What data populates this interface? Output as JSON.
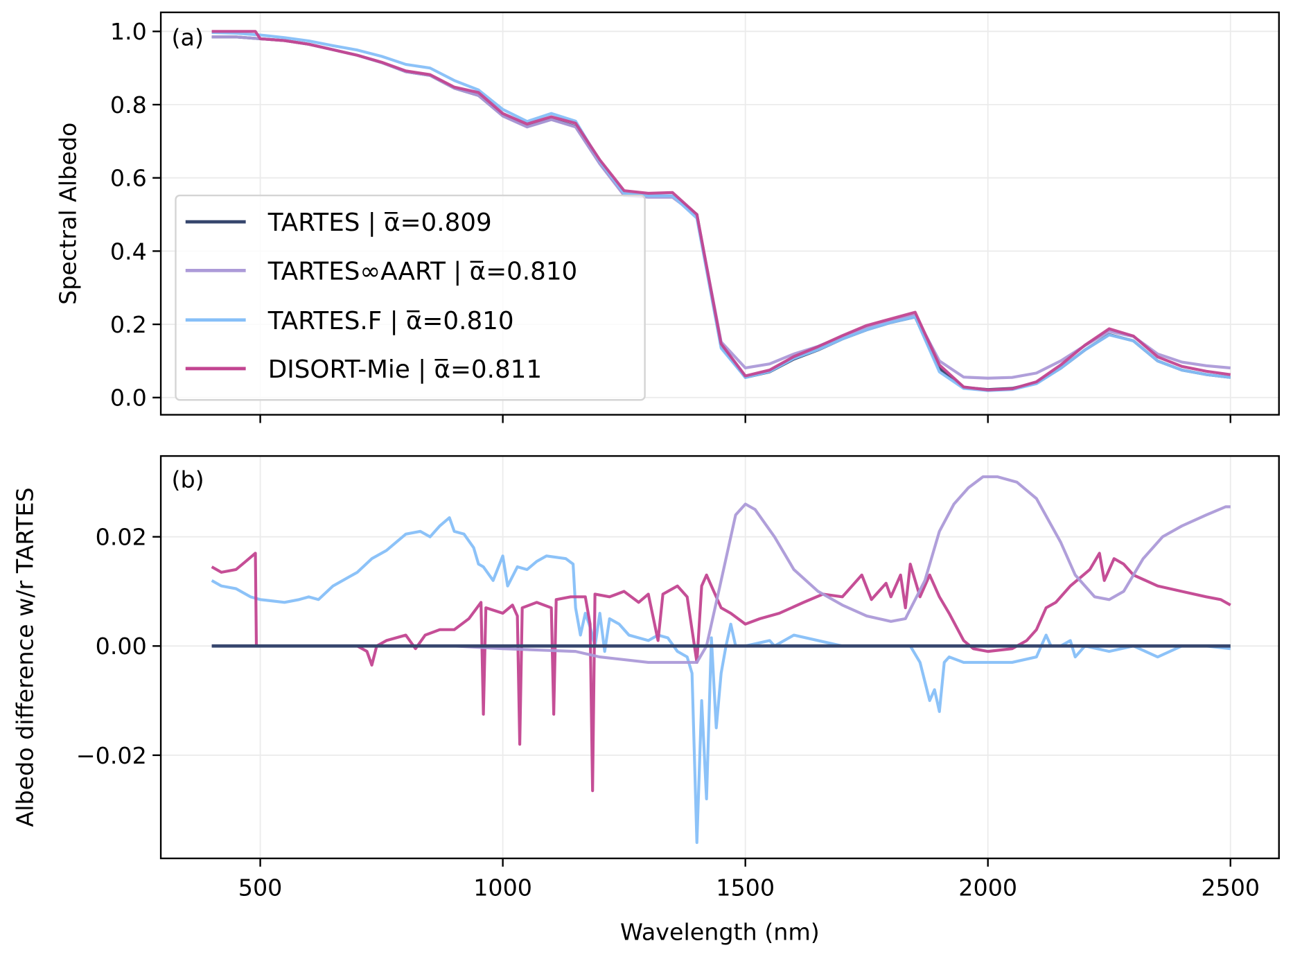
{
  "chart_data": [
    {
      "type": "line",
      "panel_label": "(a)",
      "xlabel": "",
      "ylabel": "Spectral Albedo",
      "xlim": [
        295,
        2600
      ],
      "ylim": [
        -0.047,
        1.052
      ],
      "xticks": [
        500,
        1000,
        1500,
        2000,
        2500
      ],
      "xtick_labels_shown": false,
      "yticks": [
        0.0,
        0.2,
        0.4,
        0.6,
        0.8,
        1.0
      ],
      "ytick_labels": [
        "0.0",
        "0.2",
        "0.4",
        "0.6",
        "0.8",
        "1.0"
      ],
      "grid": true,
      "legend_placement": "center-left",
      "series": [
        {
          "name": "TARTES | α̅=0.809",
          "color": "#36466d",
          "x": [
            400,
            450,
            500,
            550,
            600,
            650,
            700,
            750,
            800,
            850,
            900,
            950,
            1000,
            1050,
            1100,
            1150,
            1200,
            1250,
            1300,
            1350,
            1400,
            1450,
            1500,
            1550,
            1600,
            1650,
            1700,
            1750,
            1800,
            1850,
            1900,
            1950,
            2000,
            2050,
            2100,
            2150,
            2200,
            2250,
            2300,
            2350,
            2400,
            2450,
            2500
          ],
          "y": [
            0.985,
            0.985,
            0.98,
            0.975,
            0.965,
            0.95,
            0.935,
            0.915,
            0.89,
            0.88,
            0.845,
            0.825,
            0.77,
            0.74,
            0.76,
            0.74,
            0.64,
            0.555,
            0.55,
            0.55,
            0.5,
            0.14,
            0.055,
            0.07,
            0.105,
            0.13,
            0.16,
            0.185,
            0.205,
            0.22,
            0.08,
            0.028,
            0.022,
            0.025,
            0.04,
            0.08,
            0.13,
            0.172,
            0.155,
            0.1,
            0.075,
            0.063,
            0.055
          ]
        },
        {
          "name": "TARTES∞AART | α̅=0.810",
          "color": "#ac9ad8",
          "x": [
            400,
            450,
            500,
            550,
            600,
            650,
            700,
            750,
            800,
            850,
            900,
            950,
            1000,
            1050,
            1100,
            1150,
            1200,
            1250,
            1300,
            1350,
            1400,
            1450,
            1500,
            1550,
            1600,
            1650,
            1700,
            1750,
            1800,
            1850,
            1900,
            1950,
            2000,
            2050,
            2100,
            2150,
            2200,
            2250,
            2300,
            2350,
            2400,
            2450,
            2500
          ],
          "y": [
            0.985,
            0.985,
            0.98,
            0.975,
            0.965,
            0.95,
            0.935,
            0.915,
            0.89,
            0.88,
            0.845,
            0.825,
            0.769,
            0.739,
            0.759,
            0.739,
            0.638,
            0.552,
            0.547,
            0.547,
            0.497,
            0.152,
            0.081,
            0.092,
            0.119,
            0.14,
            0.167,
            0.191,
            0.21,
            0.225,
            0.1,
            0.056,
            0.053,
            0.055,
            0.067,
            0.1,
            0.142,
            0.181,
            0.167,
            0.119,
            0.097,
            0.087,
            0.081
          ]
        },
        {
          "name": "TARTES.F | α̅=0.810",
          "color": "#86bff8",
          "x": [
            400,
            450,
            500,
            550,
            600,
            650,
            700,
            750,
            800,
            850,
            900,
            950,
            1000,
            1050,
            1100,
            1150,
            1200,
            1250,
            1300,
            1350,
            1400,
            1450,
            1500,
            1550,
            1600,
            1650,
            1700,
            1750,
            1800,
            1850,
            1900,
            1950,
            2000,
            2050,
            2100,
            2150,
            2200,
            2250,
            2300,
            2350,
            2400,
            2450,
            2500
          ],
          "y": [
            0.997,
            0.995,
            0.99,
            0.983,
            0.974,
            0.961,
            0.949,
            0.932,
            0.91,
            0.9,
            0.866,
            0.84,
            0.787,
            0.754,
            0.776,
            0.755,
            0.645,
            0.558,
            0.551,
            0.551,
            0.49,
            0.135,
            0.055,
            0.071,
            0.107,
            0.131,
            0.16,
            0.185,
            0.205,
            0.22,
            0.07,
            0.025,
            0.019,
            0.022,
            0.038,
            0.08,
            0.13,
            0.171,
            0.155,
            0.1,
            0.075,
            0.063,
            0.055
          ]
        },
        {
          "name": "DISORT-Mie | α̅=0.811",
          "color": "#c24490",
          "x": [
            400,
            450,
            490,
            500,
            550,
            600,
            650,
            700,
            750,
            800,
            850,
            900,
            950,
            1000,
            1050,
            1100,
            1150,
            1200,
            1250,
            1300,
            1350,
            1400,
            1450,
            1500,
            1550,
            1600,
            1650,
            1700,
            1750,
            1800,
            1850,
            1900,
            1950,
            2000,
            2050,
            2100,
            2150,
            2200,
            2250,
            2300,
            2350,
            2400,
            2450,
            2500
          ],
          "y": [
            1.0,
            1.0,
            1.0,
            0.98,
            0.975,
            0.965,
            0.95,
            0.935,
            0.916,
            0.892,
            0.882,
            0.848,
            0.833,
            0.776,
            0.747,
            0.767,
            0.749,
            0.649,
            0.565,
            0.558,
            0.56,
            0.5,
            0.147,
            0.059,
            0.075,
            0.112,
            0.139,
            0.169,
            0.197,
            0.215,
            0.233,
            0.089,
            0.029,
            0.021,
            0.024,
            0.043,
            0.089,
            0.143,
            0.188,
            0.168,
            0.111,
            0.085,
            0.072,
            0.0625
          ]
        }
      ]
    },
    {
      "type": "line",
      "panel_label": "(b)",
      "xlabel": "Wavelength (nm)",
      "ylabel": "Albedo difference w/r TARTES",
      "xlim": [
        295,
        2600
      ],
      "ylim": [
        -0.0389,
        0.0348
      ],
      "xticks": [
        500,
        1000,
        1500,
        2000,
        2500
      ],
      "xtick_labels": [
        "500",
        "1000",
        "1500",
        "2000",
        "2500"
      ],
      "yticks": [
        -0.02,
        0.0,
        0.02
      ],
      "ytick_labels": [
        "−0.02",
        "0.00",
        "0.02"
      ],
      "grid": true,
      "series": [
        {
          "color": "#86bff8",
          "x": [
            400,
            420,
            450,
            480,
            500,
            550,
            580,
            600,
            620,
            650,
            700,
            730,
            760,
            800,
            830,
            850,
            870,
            890,
            900,
            920,
            940,
            950,
            960,
            980,
            1000,
            1010,
            1030,
            1050,
            1070,
            1090,
            1130,
            1145,
            1150,
            1160,
            1170,
            1180,
            1190,
            1200,
            1210,
            1220,
            1240,
            1260,
            1280,
            1300,
            1320,
            1340,
            1360,
            1380,
            1390,
            1400,
            1410,
            1420,
            1430,
            1440,
            1450,
            1460,
            1470,
            1480,
            1500,
            1550,
            1560,
            1600,
            1650,
            1700,
            1750,
            1800,
            1840,
            1860,
            1880,
            1890,
            1900,
            1910,
            1920,
            1950,
            2000,
            2050,
            2100,
            2110,
            2120,
            2130,
            2150,
            2170,
            2180,
            2200,
            2250,
            2300,
            2350,
            2400,
            2450,
            2500
          ],
          "y": [
            0.012,
            0.011,
            0.0105,
            0.009,
            0.0085,
            0.008,
            0.0085,
            0.009,
            0.0085,
            0.011,
            0.0135,
            0.016,
            0.0175,
            0.0205,
            0.021,
            0.02,
            0.022,
            0.0235,
            0.021,
            0.0205,
            0.018,
            0.015,
            0.0145,
            0.012,
            0.0165,
            0.011,
            0.0145,
            0.014,
            0.0155,
            0.0165,
            0.016,
            0.015,
            0.007,
            0.002,
            0.006,
            0.0035,
            0.0,
            0.006,
            -0.001,
            0.005,
            0.004,
            0.002,
            0.0015,
            0.001,
            0.002,
            0.0015,
            -0.001,
            -0.002,
            -0.005,
            -0.036,
            -0.01,
            -0.028,
            0.0015,
            -0.015,
            -0.005,
            0.0,
            0.004,
            0.0,
            0.0,
            0.001,
            0.0,
            0.002,
            0.001,
            0.0,
            0.0,
            0.0,
            0.0,
            -0.003,
            -0.01,
            -0.008,
            -0.012,
            -0.003,
            -0.002,
            -0.003,
            -0.003,
            -0.003,
            -0.002,
            0.0,
            0.002,
            0.0,
            0.0,
            0.001,
            -0.002,
            0.0,
            -0.001,
            0.0,
            -0.002,
            0.0,
            0.0,
            -0.0005
          ]
        },
        {
          "color": "#c24490",
          "x": [
            400,
            420,
            450,
            470,
            490,
            492,
            550,
            600,
            650,
            700,
            720,
            730,
            740,
            760,
            800,
            820,
            840,
            870,
            900,
            930,
            955,
            960,
            965,
            1000,
            1020,
            1030,
            1035,
            1040,
            1070,
            1100,
            1105,
            1110,
            1140,
            1170,
            1180,
            1185,
            1190,
            1220,
            1250,
            1280,
            1300,
            1320,
            1330,
            1360,
            1380,
            1400,
            1410,
            1420,
            1450,
            1470,
            1500,
            1530,
            1570,
            1620,
            1660,
            1700,
            1720,
            1740,
            1760,
            1790,
            1800,
            1820,
            1830,
            1840,
            1860,
            1880,
            1900,
            1920,
            1950,
            1970,
            2000,
            2050,
            2080,
            2100,
            2120,
            2140,
            2170,
            2190,
            2210,
            2230,
            2240,
            2260,
            2280,
            2300,
            2350,
            2400,
            2450,
            2480,
            2500
          ],
          "y": [
            0.0145,
            0.0135,
            0.014,
            0.0155,
            0.017,
            0.0,
            0.0,
            0.0,
            0.0,
            0.0,
            -0.001,
            -0.0035,
            0.0,
            0.001,
            0.002,
            -0.0005,
            0.002,
            0.003,
            0.003,
            0.005,
            0.008,
            -0.0125,
            0.007,
            0.006,
            0.0075,
            0.0055,
            -0.018,
            0.007,
            0.008,
            0.007,
            -0.0125,
            0.0085,
            0.009,
            0.009,
            0.004,
            -0.0265,
            0.0095,
            0.009,
            0.01,
            0.008,
            0.0095,
            0.001,
            0.0095,
            0.011,
            0.009,
            -0.003,
            0.011,
            0.013,
            0.007,
            0.006,
            0.004,
            0.005,
            0.006,
            0.008,
            0.0095,
            0.009,
            0.011,
            0.013,
            0.0085,
            0.0115,
            0.009,
            0.013,
            0.007,
            0.015,
            0.009,
            0.013,
            0.009,
            0.006,
            0.001,
            -0.0005,
            -0.001,
            -0.0005,
            0.001,
            0.003,
            0.007,
            0.008,
            0.011,
            0.0125,
            0.014,
            0.017,
            0.012,
            0.016,
            0.015,
            0.013,
            0.011,
            0.01,
            0.009,
            0.0085,
            0.0075
          ]
        },
        {
          "color": "#ac9ad8",
          "x": [
            400,
            600,
            900,
            1000,
            1150,
            1200,
            1300,
            1400,
            1420,
            1450,
            1480,
            1500,
            1520,
            1560,
            1600,
            1650,
            1700,
            1750,
            1800,
            1830,
            1870,
            1900,
            1930,
            1960,
            1990,
            2020,
            2060,
            2100,
            2150,
            2180,
            2220,
            2250,
            2280,
            2320,
            2360,
            2400,
            2450,
            2490,
            2500
          ],
          "y": [
            0,
            0,
            0,
            -0.0005,
            -0.001,
            -0.002,
            -0.003,
            -0.003,
            0.0,
            0.012,
            0.024,
            0.026,
            0.025,
            0.02,
            0.014,
            0.01,
            0.0075,
            0.0055,
            0.0045,
            0.005,
            0.012,
            0.021,
            0.026,
            0.029,
            0.031,
            0.031,
            0.03,
            0.027,
            0.019,
            0.013,
            0.009,
            0.0085,
            0.01,
            0.016,
            0.02,
            0.022,
            0.024,
            0.0255,
            0.0255
          ]
        },
        {
          "color": "#36466d",
          "x": [
            400,
            2500
          ],
          "y": [
            0,
            0
          ]
        }
      ]
    }
  ]
}
